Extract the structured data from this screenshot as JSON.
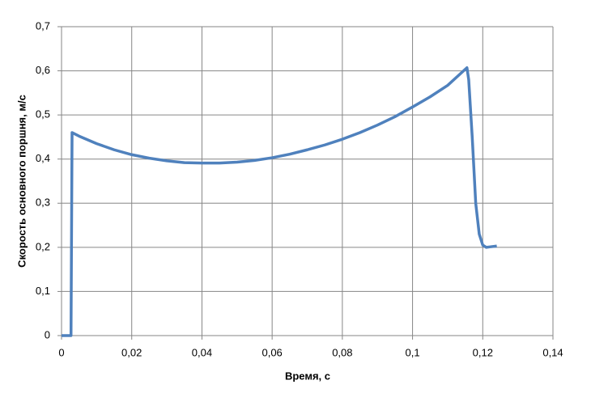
{
  "chart_data": {
    "type": "line",
    "x_label": "Время, с",
    "y_label": "Скорость основного поршня, м/с",
    "x": [
      0,
      0.0027,
      0.003,
      0.005,
      0.01,
      0.015,
      0.02,
      0.025,
      0.03,
      0.035,
      0.04,
      0.045,
      0.05,
      0.055,
      0.06,
      0.065,
      0.07,
      0.075,
      0.08,
      0.085,
      0.09,
      0.095,
      0.1,
      0.105,
      0.11,
      0.1155,
      0.116,
      0.117,
      0.118,
      0.119,
      0.12,
      0.121,
      0.122,
      0.124
    ],
    "series": [
      {
        "color": "#4f81bd",
        "values": [
          0,
          0,
          0.46,
          0.452,
          0.435,
          0.421,
          0.41,
          0.402,
          0.396,
          0.392,
          0.391,
          0.391,
          0.393,
          0.397,
          0.403,
          0.411,
          0.421,
          0.432,
          0.445,
          0.46,
          0.477,
          0.496,
          0.518,
          0.541,
          0.567,
          0.607,
          0.58,
          0.45,
          0.3,
          0.23,
          0.205,
          0.2,
          0.201,
          0.203
        ]
      }
    ],
    "xlim": [
      0,
      0.14
    ],
    "xticks": [
      0,
      {
        "value": 0.02,
        "label": "0,02"
      },
      {
        "value": 0.04,
        "label": "0,04"
      },
      {
        "value": 0.06,
        "label": "0,06"
      },
      {
        "value": 0.08,
        "label": "0,08"
      },
      {
        "value": 0.1,
        "label": "0,1"
      },
      {
        "value": 0.12,
        "label": "0,12"
      },
      {
        "value": 0.14,
        "label": "0,14"
      }
    ],
    "ylim": [
      0,
      0.7
    ],
    "yticks": [
      0,
      {
        "value": 0.1,
        "label": "0,1"
      },
      {
        "value": 0.2,
        "label": "0,2"
      },
      {
        "value": 0.3,
        "label": "0,3"
      },
      {
        "value": 0.4,
        "label": "0,4"
      },
      {
        "value": 0.5,
        "label": "0,5"
      },
      {
        "value": 0.6,
        "label": "0,6"
      },
      {
        "value": 0.7,
        "label": "0,7"
      }
    ],
    "grid": true
  }
}
